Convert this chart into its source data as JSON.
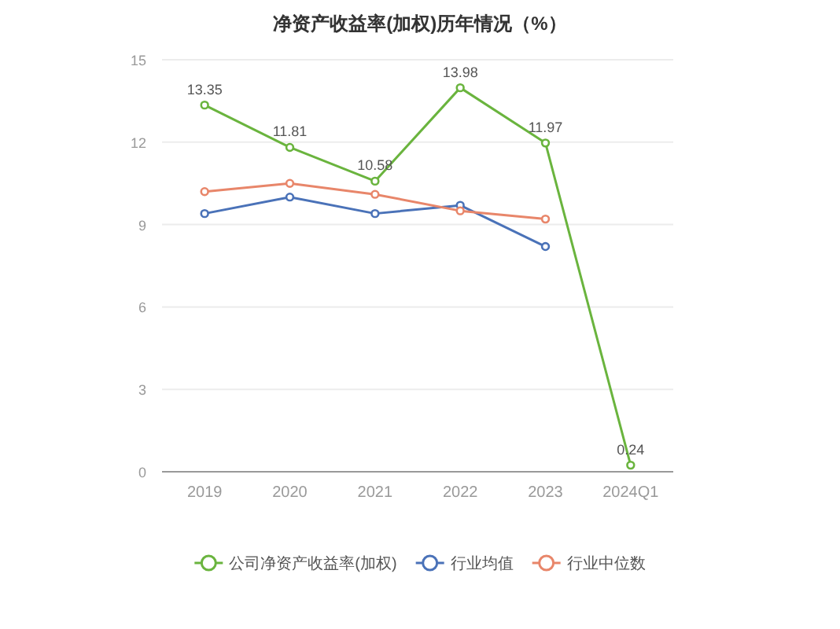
{
  "chart_data": {
    "type": "line",
    "title": "净资产收益率(加权)历年情况（%）",
    "categories": [
      "2019",
      "2020",
      "2021",
      "2022",
      "2023",
      "2024Q1"
    ],
    "series": [
      {
        "name": "公司净资产收益率(加权)",
        "color": "#6ab43e",
        "values": [
          13.35,
          11.81,
          10.58,
          13.98,
          11.97,
          0.24
        ],
        "value_labels": [
          "13.35",
          "11.81",
          "10.58",
          "13.98",
          "11.97",
          "0.24"
        ]
      },
      {
        "name": "行业均值",
        "color": "#4a72b8",
        "values": [
          9.4,
          10.0,
          9.4,
          9.7,
          8.2,
          null
        ]
      },
      {
        "name": "行业中位数",
        "color": "#e8866a",
        "values": [
          10.2,
          10.5,
          10.1,
          9.5,
          9.2,
          null
        ]
      }
    ],
    "ylim": [
      0,
      15
    ],
    "yticks": [
      0,
      3,
      6,
      9,
      12,
      15
    ],
    "grid": "y",
    "legend": "bottom",
    "marker": "circle",
    "line_style": "solid"
  }
}
